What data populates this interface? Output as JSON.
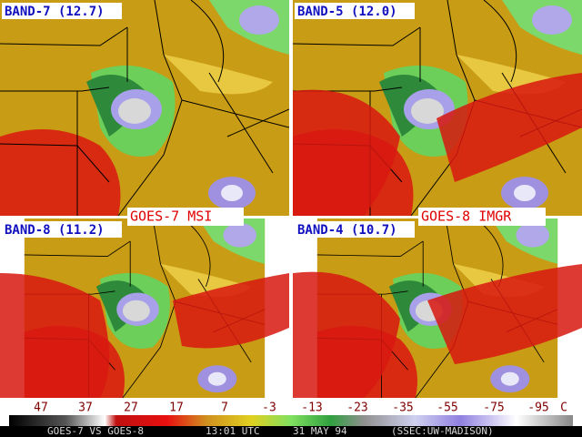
{
  "panels": [
    {
      "label": "BAND-7 (12.7)"
    },
    {
      "label": "BAND-5 (12.0)"
    },
    {
      "label": "BAND-8 (11.2)"
    },
    {
      "label": "BAND-4 (10.7)"
    }
  ],
  "instruments": [
    "GOES-7 MSI",
    "GOES-8 IMGR"
  ],
  "scale": {
    "labels": [
      "47",
      "37",
      "27",
      "17",
      "7",
      "-3",
      "-13",
      "-23",
      "-35",
      "-55",
      "-75",
      "-95"
    ],
    "unit": "C"
  },
  "footer": {
    "comparison": "GOES-7 VS GOES-8",
    "time": "13:01 UTC",
    "date": "31 MAY 94",
    "credit": "(SSEC:UW-MADISON)"
  }
}
